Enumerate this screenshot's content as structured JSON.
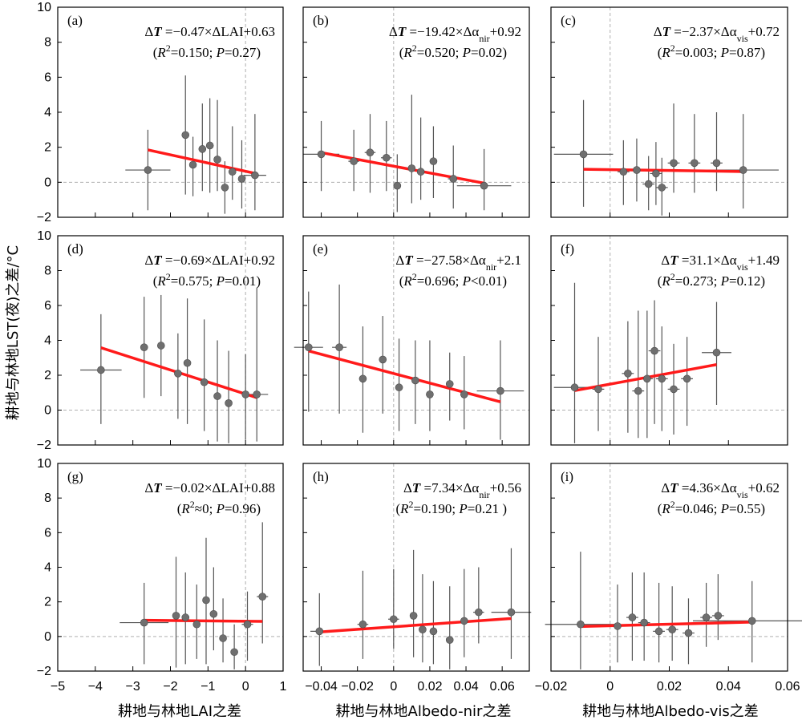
{
  "figure": {
    "ylabel": "耕地与林地LST(夜)之差/°C",
    "xlabels": [
      "耕地与林地LAI之差",
      "耕地与林地Albedo-nir之差",
      "耕地与林地Albedo-vis之差"
    ]
  },
  "colors": {
    "point": "#6f6f6f",
    "errorbar": "#555555",
    "fit": "#ff1a1a",
    "reference": "#b0b0b0",
    "frame": "#000000"
  },
  "chart_data": [
    {
      "type": "scatter",
      "panel": "(a)",
      "equation": "ΔT =−0.47×ΔLAI+0.63",
      "stats": "(R2=0.150; P=0.27)",
      "xlim": [
        -5,
        1
      ],
      "ylim": [
        -2,
        10
      ],
      "xticks": [
        -5,
        -4,
        -3,
        -2,
        -1,
        0,
        1
      ],
      "yticks": [
        -2,
        0,
        2,
        4,
        6,
        8,
        10
      ],
      "fit": {
        "slope": -0.47,
        "intercept": 0.63,
        "x_range": [
          -2.6,
          0.3
        ]
      },
      "points": [
        {
          "x": -2.6,
          "y": 0.7,
          "xerr": 0.6,
          "ylow": -1.6,
          "yhigh": 3.0
        },
        {
          "x": -1.6,
          "y": 2.7,
          "xerr": 0.05,
          "ylow": -0.7,
          "yhigh": 6.1
        },
        {
          "x": -1.4,
          "y": 1.0,
          "xerr": 0.05,
          "ylow": -0.8,
          "yhigh": 2.6
        },
        {
          "x": -1.15,
          "y": 1.9,
          "xerr": 0.05,
          "ylow": -0.5,
          "yhigh": 4.5
        },
        {
          "x": -0.95,
          "y": 2.1,
          "xerr": 0.05,
          "ylow": -0.6,
          "yhigh": 4.8
        },
        {
          "x": -0.75,
          "y": 1.3,
          "xerr": 0.05,
          "ylow": -0.5,
          "yhigh": 4.7
        },
        {
          "x": -0.55,
          "y": -0.3,
          "xerr": 0.05,
          "ylow": -1.8,
          "yhigh": 1.2
        },
        {
          "x": -0.35,
          "y": 0.6,
          "xerr": 0.05,
          "ylow": -1.0,
          "yhigh": 3.2
        },
        {
          "x": -0.1,
          "y": 0.2,
          "xerr": 0.05,
          "ylow": -1.5,
          "yhigh": 2.4
        },
        {
          "x": 0.25,
          "y": 0.4,
          "xerr": 0.3,
          "ylow": -1.6,
          "yhigh": 3.9
        }
      ]
    },
    {
      "type": "scatter",
      "panel": "(b)",
      "equation": "ΔT =−19.42×Δαnir+0.92",
      "stats": "(R2=0.520; P=0.02)",
      "xlim": [
        -0.05,
        0.075
      ],
      "ylim": [
        -2,
        10
      ],
      "xticks": [
        -0.04,
        -0.02,
        0,
        0.02,
        0.04,
        0.06
      ],
      "yticks": [
        -2,
        0,
        2,
        4,
        6,
        8,
        10
      ],
      "fit": {
        "slope": -19.42,
        "intercept": 0.92,
        "x_range": [
          -0.04,
          0.05
        ]
      },
      "points": [
        {
          "x": -0.04,
          "y": 1.6,
          "xerr": 0.01,
          "ylow": -0.5,
          "yhigh": 3.5
        },
        {
          "x": -0.022,
          "y": 1.2,
          "xerr": 0.003,
          "ylow": -0.5,
          "yhigh": 3.0
        },
        {
          "x": -0.013,
          "y": 1.7,
          "xerr": 0.003,
          "ylow": -0.6,
          "yhigh": 3.9
        },
        {
          "x": -0.004,
          "y": 1.4,
          "xerr": 0.003,
          "ylow": -0.5,
          "yhigh": 3.5
        },
        {
          "x": 0.002,
          "y": -0.2,
          "xerr": 0.002,
          "ylow": -1.7,
          "yhigh": 1.6
        },
        {
          "x": 0.01,
          "y": 0.8,
          "xerr": 0.002,
          "ylow": -1.2,
          "yhigh": 5.0
        },
        {
          "x": 0.015,
          "y": 0.6,
          "xerr": 0.002,
          "ylow": -1.0,
          "yhigh": 3.7
        },
        {
          "x": 0.022,
          "y": 1.2,
          "xerr": 0.002,
          "ylow": -0.9,
          "yhigh": 3.2
        },
        {
          "x": 0.033,
          "y": 0.2,
          "xerr": 0.003,
          "ylow": -1.5,
          "yhigh": 2.1
        },
        {
          "x": 0.05,
          "y": -0.2,
          "xerr": 0.015,
          "ylow": -1.6,
          "yhigh": 1.9
        }
      ]
    },
    {
      "type": "scatter",
      "panel": "(c)",
      "equation": "ΔT =−2.37×Δαvis+0.72",
      "stats": "(R2=0.003; P=0.87)",
      "xlim": [
        -0.02,
        0.06
      ],
      "ylim": [
        -2,
        10
      ],
      "xticks": [
        -0.02,
        0,
        0.02,
        0.04,
        0.06
      ],
      "yticks": [
        -2,
        0,
        2,
        4,
        6,
        8,
        10
      ],
      "fit": {
        "slope": -2.37,
        "intercept": 0.72,
        "x_range": [
          -0.009,
          0.045
        ]
      },
      "points": [
        {
          "x": -0.009,
          "y": 1.6,
          "xerr": 0.01,
          "ylow": -1.4,
          "yhigh": 4.7
        },
        {
          "x": 0.0045,
          "y": 0.6,
          "xerr": 0.002,
          "ylow": -1.3,
          "yhigh": 2.4
        },
        {
          "x": 0.009,
          "y": 0.7,
          "xerr": 0.002,
          "ylow": -1.1,
          "yhigh": 2.5
        },
        {
          "x": 0.013,
          "y": -0.1,
          "xerr": 0.002,
          "ylow": -1.6,
          "yhigh": 1.5
        },
        {
          "x": 0.0155,
          "y": 0.5,
          "xerr": 0.002,
          "ylow": -1.3,
          "yhigh": 2.3
        },
        {
          "x": 0.0175,
          "y": -0.3,
          "xerr": 0.002,
          "ylow": -1.9,
          "yhigh": 1.4
        },
        {
          "x": 0.0215,
          "y": 1.1,
          "xerr": 0.002,
          "ylow": -0.6,
          "yhigh": 4.5
        },
        {
          "x": 0.0285,
          "y": 1.1,
          "xerr": 0.002,
          "ylow": -0.6,
          "yhigh": 3.9
        },
        {
          "x": 0.036,
          "y": 1.1,
          "xerr": 0.002,
          "ylow": -0.5,
          "yhigh": 4.0
        },
        {
          "x": 0.045,
          "y": 0.7,
          "xerr": 0.012,
          "ylow": -1.5,
          "yhigh": 3.9
        }
      ]
    },
    {
      "type": "scatter",
      "panel": "(d)",
      "equation": "ΔT =−0.69×ΔLAI+0.92",
      "stats": "(R2=0.575; P=0.01)",
      "xlim": [
        -5,
        1
      ],
      "ylim": [
        -2,
        10
      ],
      "xticks": [
        -5,
        -4,
        -3,
        -2,
        -1,
        0,
        1
      ],
      "yticks": [
        -2,
        0,
        2,
        4,
        6,
        8,
        10
      ],
      "fit": {
        "slope": -0.69,
        "intercept": 0.92,
        "x_range": [
          -3.85,
          0.3
        ]
      },
      "points": [
        {
          "x": -3.85,
          "y": 2.3,
          "xerr": 0.55,
          "ylow": -0.8,
          "yhigh": 5.5
        },
        {
          "x": -2.7,
          "y": 3.6,
          "xerr": 0.1,
          "ylow": 0.7,
          "yhigh": 6.5
        },
        {
          "x": -2.25,
          "y": 3.7,
          "xerr": 0.1,
          "ylow": 0.8,
          "yhigh": 6.6
        },
        {
          "x": -1.8,
          "y": 2.1,
          "xerr": 0.05,
          "ylow": -0.5,
          "yhigh": 4.4
        },
        {
          "x": -1.55,
          "y": 2.7,
          "xerr": 0.05,
          "ylow": -0.8,
          "yhigh": 6.4
        },
        {
          "x": -1.1,
          "y": 1.6,
          "xerr": 0.05,
          "ylow": -1.2,
          "yhigh": 5.2
        },
        {
          "x": -0.75,
          "y": 0.8,
          "xerr": 0.05,
          "ylow": -1.8,
          "yhigh": 4.0
        },
        {
          "x": -0.45,
          "y": 0.4,
          "xerr": 0.05,
          "ylow": -1.9,
          "yhigh": 3.4
        },
        {
          "x": 0.0,
          "y": 0.9,
          "xerr": 0.05,
          "ylow": -1.7,
          "yhigh": 3.2
        },
        {
          "x": 0.3,
          "y": 0.9,
          "xerr": 0.3,
          "ylow": -1.8,
          "yhigh": 7.0
        }
      ]
    },
    {
      "type": "scatter",
      "panel": "(e)",
      "equation": "ΔT =−27.58×Δαnir+2.1",
      "stats": "(R2=0.696; P<0.01)",
      "xlim": [
        -0.05,
        0.075
      ],
      "ylim": [
        -2,
        10
      ],
      "xticks": [
        -0.04,
        -0.02,
        0,
        0.02,
        0.04,
        0.06
      ],
      "yticks": [
        -2,
        0,
        2,
        4,
        6,
        8,
        10
      ],
      "fit": {
        "slope": -27.58,
        "intercept": 2.1,
        "x_range": [
          -0.047,
          0.059
        ]
      },
      "points": [
        {
          "x": -0.047,
          "y": 3.6,
          "xerr": 0.008,
          "ylow": -0.1,
          "yhigh": 6.8
        },
        {
          "x": -0.03,
          "y": 3.6,
          "xerr": 0.004,
          "ylow": -0.2,
          "yhigh": 7.2
        },
        {
          "x": -0.017,
          "y": 1.8,
          "xerr": 0.002,
          "ylow": -1.3,
          "yhigh": 4.8
        },
        {
          "x": -0.006,
          "y": 2.9,
          "xerr": 0.002,
          "ylow": -0.2,
          "yhigh": 5.4
        },
        {
          "x": 0.003,
          "y": 1.3,
          "xerr": 0.002,
          "ylow": -1.2,
          "yhigh": 4.1
        },
        {
          "x": 0.012,
          "y": 1.7,
          "xerr": 0.002,
          "ylow": -0.8,
          "yhigh": 4.0
        },
        {
          "x": 0.02,
          "y": 0.9,
          "xerr": 0.002,
          "ylow": -1.2,
          "yhigh": 4.0
        },
        {
          "x": 0.031,
          "y": 1.5,
          "xerr": 0.002,
          "ylow": -0.6,
          "yhigh": 3.3
        },
        {
          "x": 0.039,
          "y": 0.9,
          "xerr": 0.002,
          "ylow": -1.1,
          "yhigh": 3.1
        },
        {
          "x": 0.059,
          "y": 1.1,
          "xerr": 0.013,
          "ylow": -1.7,
          "yhigh": 4.0
        }
      ]
    },
    {
      "type": "scatter",
      "panel": "(f)",
      "equation": "ΔT =31.1×Δαvis+1.49",
      "stats": "(R2=0.273; P=0.12)",
      "xlim": [
        -0.02,
        0.06
      ],
      "ylim": [
        -2,
        10
      ],
      "xticks": [
        -0.02,
        0,
        0.02,
        0.04,
        0.06
      ],
      "yticks": [
        -2,
        0,
        2,
        4,
        6,
        8,
        10
      ],
      "fit": {
        "slope": 31.1,
        "intercept": 1.49,
        "x_range": [
          -0.012,
          0.036
        ]
      },
      "points": [
        {
          "x": -0.012,
          "y": 1.3,
          "xerr": 0.007,
          "ylow": -1.9,
          "yhigh": 7.3
        },
        {
          "x": -0.004,
          "y": 1.2,
          "xerr": 0.002,
          "ylow": -1.2,
          "yhigh": 4.2
        },
        {
          "x": 0.006,
          "y": 2.1,
          "xerr": 0.002,
          "ylow": -1.3,
          "yhigh": 5.1
        },
        {
          "x": 0.0095,
          "y": 1.1,
          "xerr": 0.002,
          "ylow": -1.6,
          "yhigh": 5.7
        },
        {
          "x": 0.0125,
          "y": 1.8,
          "xerr": 0.002,
          "ylow": -1.6,
          "yhigh": 5.7
        },
        {
          "x": 0.015,
          "y": 3.4,
          "xerr": 0.002,
          "ylow": -0.8,
          "yhigh": 6.3
        },
        {
          "x": 0.0175,
          "y": 1.8,
          "xerr": 0.002,
          "ylow": -1.2,
          "yhigh": 4.8
        },
        {
          "x": 0.0215,
          "y": 1.2,
          "xerr": 0.002,
          "ylow": -1.4,
          "yhigh": 3.8
        },
        {
          "x": 0.026,
          "y": 1.8,
          "xerr": 0.002,
          "ylow": -0.9,
          "yhigh": 4.2
        },
        {
          "x": 0.036,
          "y": 3.3,
          "xerr": 0.005,
          "ylow": 0.3,
          "yhigh": 6.2
        }
      ]
    },
    {
      "type": "scatter",
      "panel": "(g)",
      "equation": "ΔT =−0.02×ΔLAI+0.88",
      "stats": "(R2≈0;  P=0.96)",
      "xlim": [
        -5,
        1
      ],
      "ylim": [
        -2,
        10
      ],
      "xticks": [
        -5,
        -4,
        -3,
        -2,
        -1,
        0,
        1
      ],
      "yticks": [
        -2,
        0,
        2,
        4,
        6,
        8,
        10
      ],
      "fit": {
        "slope": -0.02,
        "intercept": 0.88,
        "x_range": [
          -2.7,
          0.45
        ]
      },
      "points": [
        {
          "x": -2.7,
          "y": 0.8,
          "xerr": 0.65,
          "ylow": -1.6,
          "yhigh": 3.1
        },
        {
          "x": -1.85,
          "y": 1.2,
          "xerr": 0.05,
          "ylow": -1.8,
          "yhigh": 4.6
        },
        {
          "x": -1.6,
          "y": 1.1,
          "xerr": 0.05,
          "ylow": -1.6,
          "yhigh": 3.7
        },
        {
          "x": -1.3,
          "y": 0.7,
          "xerr": 0.05,
          "ylow": -1.3,
          "yhigh": 3.0
        },
        {
          "x": -1.05,
          "y": 2.1,
          "xerr": 0.05,
          "ylow": -1.6,
          "yhigh": 5.7
        },
        {
          "x": -0.85,
          "y": 1.3,
          "xerr": 0.05,
          "ylow": -0.8,
          "yhigh": 4.0
        },
        {
          "x": -0.6,
          "y": -0.1,
          "xerr": 0.05,
          "ylow": -1.5,
          "yhigh": 2.2
        },
        {
          "x": -0.3,
          "y": -0.9,
          "xerr": 0.05,
          "ylow": -1.9,
          "yhigh": 0.7
        },
        {
          "x": 0.05,
          "y": 0.7,
          "xerr": 0.15,
          "ylow": -1.4,
          "yhigh": 2.6
        },
        {
          "x": 0.45,
          "y": 2.3,
          "xerr": 0.15,
          "ylow": -0.4,
          "yhigh": 6.6
        }
      ]
    },
    {
      "type": "scatter",
      "panel": "(h)",
      "equation": "ΔT =7.34×Δαnir+0.56",
      "stats": "(R2=0.190; P=0.21 )",
      "xlim": [
        -0.05,
        0.075
      ],
      "ylim": [
        -2,
        10
      ],
      "xticks": [
        -0.04,
        -0.02,
        0,
        0.02,
        0.04,
        0.06
      ],
      "yticks": [
        -2,
        0,
        2,
        4,
        6,
        8,
        10
      ],
      "fit": {
        "slope": 7.34,
        "intercept": 0.56,
        "x_range": [
          -0.041,
          0.065
        ]
      },
      "points": [
        {
          "x": -0.041,
          "y": 0.3,
          "xerr": 0.005,
          "ylow": -1.7,
          "yhigh": 2.5
        },
        {
          "x": -0.017,
          "y": 0.7,
          "xerr": 0.003,
          "ylow": -1.3,
          "yhigh": 3.8
        },
        {
          "x": 0.0,
          "y": 1.0,
          "xerr": 0.003,
          "ylow": -0.7,
          "yhigh": 3.9
        },
        {
          "x": 0.011,
          "y": 1.2,
          "xerr": 0.002,
          "ylow": -1.2,
          "yhigh": 5.0
        },
        {
          "x": 0.016,
          "y": 0.4,
          "xerr": 0.002,
          "ylow": -1.5,
          "yhigh": 3.6
        },
        {
          "x": 0.022,
          "y": 0.3,
          "xerr": 0.002,
          "ylow": -1.6,
          "yhigh": 3.2
        },
        {
          "x": 0.031,
          "y": -0.2,
          "xerr": 0.002,
          "ylow": -1.9,
          "yhigh": 2.9
        },
        {
          "x": 0.039,
          "y": 0.9,
          "xerr": 0.002,
          "ylow": -1.2,
          "yhigh": 3.9
        },
        {
          "x": 0.047,
          "y": 1.4,
          "xerr": 0.003,
          "ylow": -0.4,
          "yhigh": 4.0
        },
        {
          "x": 0.065,
          "y": 1.4,
          "xerr": 0.011,
          "ylow": -1.3,
          "yhigh": 5.1
        }
      ]
    },
    {
      "type": "scatter",
      "panel": "(i)",
      "equation": "ΔT =4.36×Δαvis+0.62",
      "stats": "(R2=0.046; P=0.55)",
      "xlim": [
        -0.02,
        0.06
      ],
      "ylim": [
        -2,
        10
      ],
      "xticks": [
        -0.02,
        0,
        0.02,
        0.04,
        0.06
      ],
      "yticks": [
        -2,
        0,
        2,
        4,
        6,
        8,
        10
      ],
      "fit": {
        "slope": 4.36,
        "intercept": 0.62,
        "x_range": [
          -0.01,
          0.048
        ]
      },
      "points": [
        {
          "x": -0.01,
          "y": 0.7,
          "xerr": 0.012,
          "ylow": -1.9,
          "yhigh": 4.9
        },
        {
          "x": 0.0025,
          "y": 0.6,
          "xerr": 0.002,
          "ylow": -1.5,
          "yhigh": 3.0
        },
        {
          "x": 0.0075,
          "y": 1.1,
          "xerr": 0.002,
          "ylow": -1.4,
          "yhigh": 3.7
        },
        {
          "x": 0.0115,
          "y": 0.8,
          "xerr": 0.002,
          "ylow": -1.4,
          "yhigh": 3.7
        },
        {
          "x": 0.0165,
          "y": 0.3,
          "xerr": 0.002,
          "ylow": -1.5,
          "yhigh": 3.1
        },
        {
          "x": 0.021,
          "y": 0.4,
          "xerr": 0.002,
          "ylow": -1.4,
          "yhigh": 2.9
        },
        {
          "x": 0.0265,
          "y": 0.2,
          "xerr": 0.002,
          "ylow": -1.6,
          "yhigh": 2.2
        },
        {
          "x": 0.0325,
          "y": 1.1,
          "xerr": 0.002,
          "ylow": -0.6,
          "yhigh": 3.1
        },
        {
          "x": 0.0365,
          "y": 1.2,
          "xerr": 0.002,
          "ylow": -0.2,
          "yhigh": 3.6
        },
        {
          "x": 0.048,
          "y": 0.9,
          "xerr": 0.02,
          "ylow": -1.5,
          "yhigh": 3.2
        }
      ]
    }
  ]
}
